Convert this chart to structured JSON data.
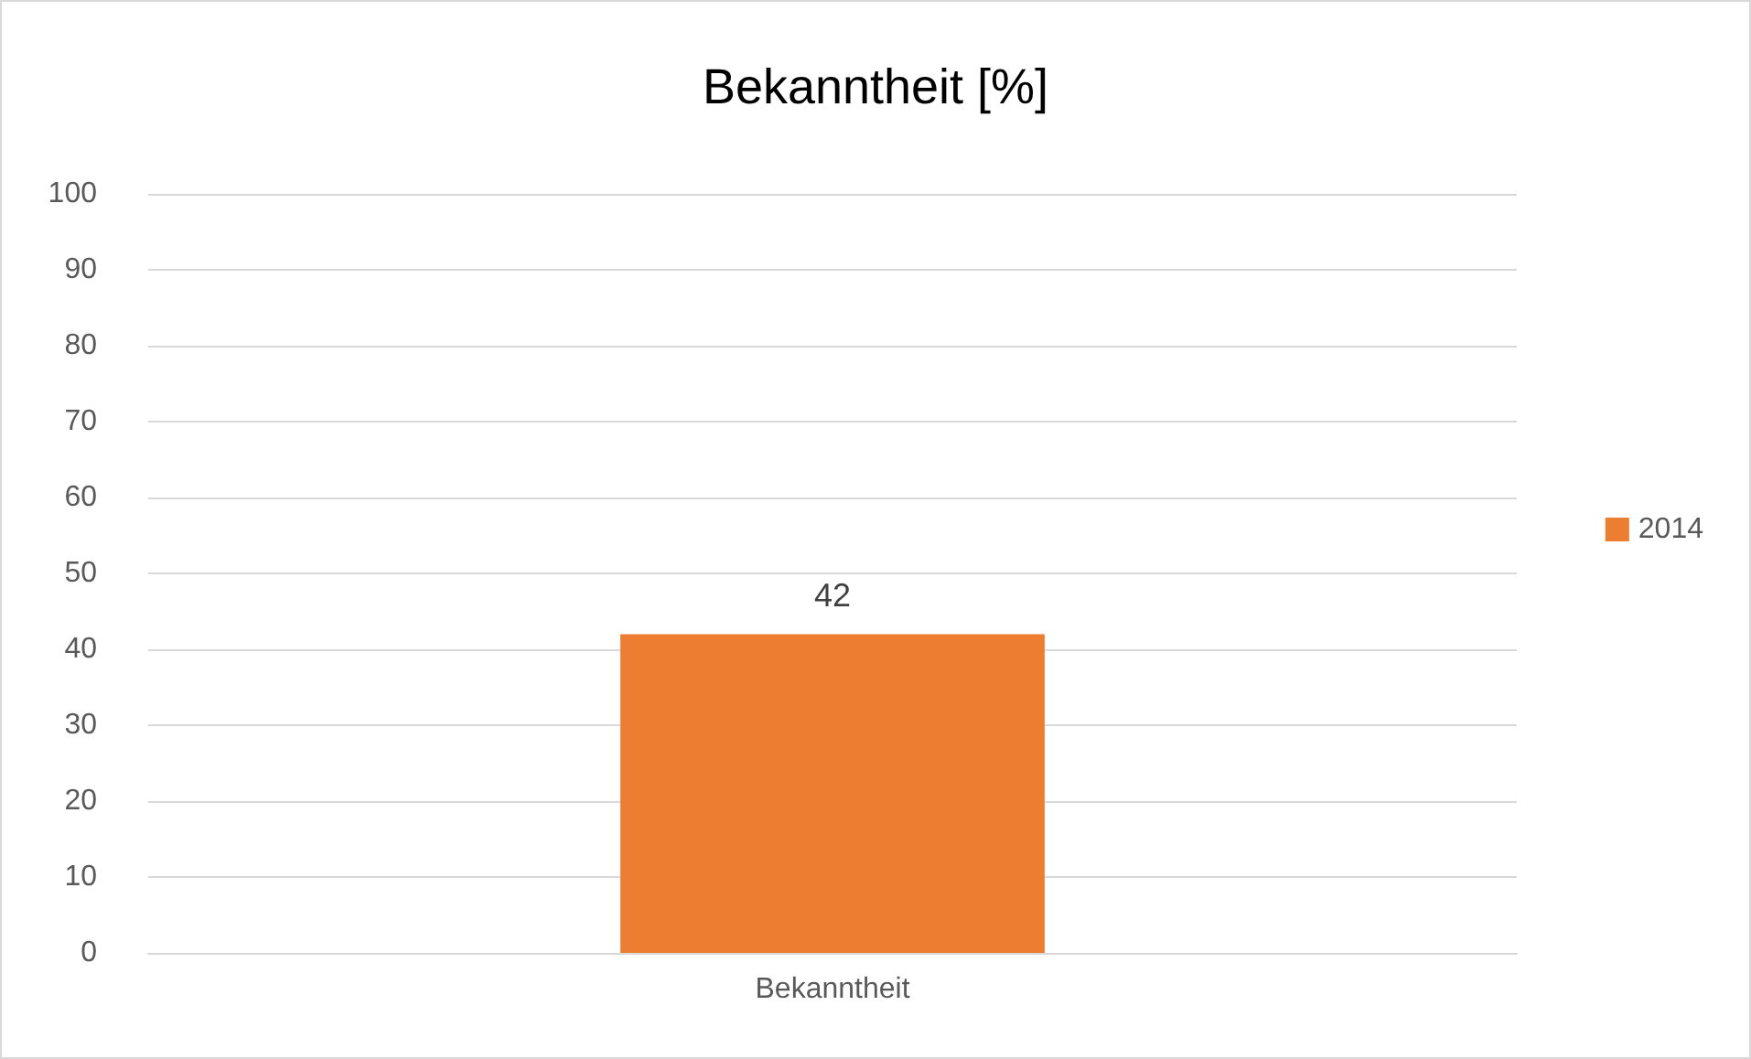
{
  "chart_data": {
    "type": "bar",
    "title": "Bekanntheit [%]",
    "categories": [
      "Bekanntheit"
    ],
    "series": [
      {
        "name": "2014",
        "color": "#ed7d31",
        "values": [
          42
        ]
      }
    ],
    "ylim": [
      0,
      100
    ],
    "yticks": [
      0,
      10,
      20,
      30,
      40,
      50,
      60,
      70,
      80,
      90,
      100
    ],
    "grid": "y",
    "legend": "right",
    "data_labels": true
  }
}
